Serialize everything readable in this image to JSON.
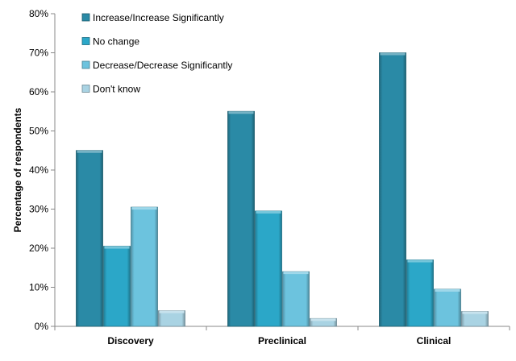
{
  "chart_data": {
    "type": "bar",
    "categories": [
      "Discovery",
      "Preclinical",
      "Clinical"
    ],
    "series": [
      {
        "name": "Increase/Increase Significantly",
        "values": [
          45,
          55,
          70
        ],
        "color": "#2a8aa6"
      },
      {
        "name": "No change",
        "values": [
          20.5,
          29.5,
          17
        ],
        "color": "#2ba7c8"
      },
      {
        "name": "Decrease/Decrease Significantly",
        "values": [
          30.5,
          14,
          9.5
        ],
        "color": "#6cc3de"
      },
      {
        "name": "Don't know",
        "values": [
          4,
          2,
          3.8
        ],
        "color": "#a9d3e3"
      }
    ],
    "xlabel": "",
    "ylabel": "Percentage of respondents",
    "ylim": [
      0,
      80
    ],
    "yticks": [
      "0%",
      "10%",
      "20%",
      "30%",
      "40%",
      "50%",
      "60%",
      "70%",
      "80%"
    ],
    "grid": false,
    "legend_position": "top-left"
  }
}
